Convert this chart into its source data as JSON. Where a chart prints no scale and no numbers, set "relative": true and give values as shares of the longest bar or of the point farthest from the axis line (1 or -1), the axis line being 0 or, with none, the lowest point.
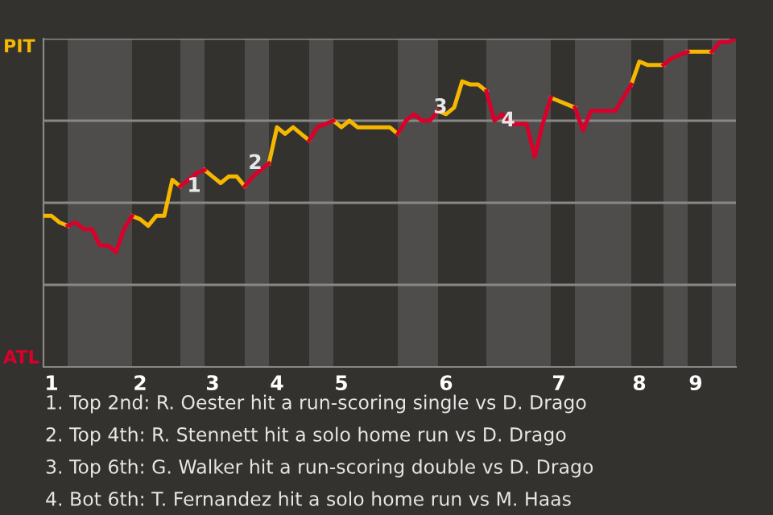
{
  "chart_data": {
    "type": "line",
    "relative": true,
    "categories": [
      null,
      "1",
      null,
      null,
      null,
      null,
      null,
      null,
      null,
      null,
      null,
      null,
      "2",
      null,
      null,
      null,
      null,
      null,
      null,
      null,
      null,
      "3",
      null,
      null,
      null,
      null,
      null,
      null,
      null,
      "4",
      null,
      null,
      null,
      null,
      null,
      null,
      null,
      "5",
      null,
      null,
      null,
      null,
      null,
      null,
      null,
      null,
      null,
      null,
      null,
      null,
      "6",
      null,
      null,
      null,
      null,
      null,
      null,
      null,
      null,
      null,
      null,
      null,
      null,
      null,
      "7",
      null,
      null,
      null,
      null,
      null,
      null,
      null,
      null,
      null,
      "8",
      null,
      null,
      null,
      null,
      null,
      null,
      "9",
      null,
      null,
      null,
      null,
      null
    ],
    "series": [
      {
        "name": "PIT",
        "color": "#f5b700",
        "values": [
          0.46,
          0.46,
          0.44,
          0.43,
          null,
          null,
          null,
          null,
          null,
          null,
          null,
          0.46,
          0.45,
          0.43,
          0.46,
          0.46,
          0.57,
          0.55,
          null,
          null,
          0.6,
          0.58,
          0.56,
          0.58,
          0.58,
          0.55,
          null,
          null,
          0.62,
          0.73,
          0.71,
          0.73,
          0.71,
          0.69,
          null,
          null,
          0.75,
          0.73,
          0.75,
          0.73,
          0.73,
          0.73,
          0.73,
          0.73,
          0.71,
          null,
          null,
          null,
          null,
          0.78,
          0.77,
          0.79,
          0.87,
          0.86,
          0.86,
          0.84,
          null,
          null,
          null,
          null,
          null,
          null,
          null,
          0.82,
          0.81,
          0.8,
          0.79,
          null,
          null,
          null,
          null,
          null,
          null,
          0.86,
          0.93,
          0.92,
          0.92,
          0.92,
          null,
          null,
          0.96,
          0.96,
          0.96,
          0.96,
          null,
          null,
          null
        ]
      },
      {
        "name": "ATL",
        "color": "#d9002b",
        "values": [
          null,
          null,
          null,
          0.43,
          0.44,
          0.42,
          0.42,
          0.37,
          0.37,
          0.35,
          0.42,
          0.46,
          null,
          null,
          null,
          null,
          null,
          0.55,
          0.57,
          0.59,
          0.6,
          null,
          null,
          null,
          null,
          0.55,
          0.58,
          0.6,
          0.62,
          null,
          null,
          null,
          null,
          0.69,
          0.73,
          0.74,
          0.75,
          null,
          null,
          null,
          null,
          null,
          null,
          null,
          0.71,
          0.75,
          0.77,
          0.75,
          0.75,
          0.78,
          null,
          null,
          null,
          null,
          null,
          0.84,
          0.75,
          0.77,
          0.74,
          0.74,
          0.74,
          0.64,
          0.74,
          0.82,
          null,
          null,
          0.79,
          0.72,
          0.78,
          0.78,
          0.78,
          0.78,
          0.82,
          0.86,
          null,
          null,
          null,
          0.92,
          0.94,
          0.95,
          0.96,
          null,
          null,
          0.96,
          0.99,
          0.99,
          1
        ]
      }
    ],
    "marker": "none",
    "line_style": "solid",
    "legend": false,
    "ref_lines": [
      {
        "axis": "y",
        "value": 0.25,
        "color": "#8a8886"
      },
      {
        "axis": "y",
        "value": 0.5,
        "color": "#8a8886"
      },
      {
        "axis": "y",
        "value": 0.75,
        "color": "#8a8886"
      },
      {
        "axis": "y",
        "value": 1,
        "color": "#8a8886"
      }
    ],
    "annotations": [
      {
        "text": "1",
        "y": 0.55
      },
      {
        "text": "2",
        "y": 0.62
      },
      {
        "text": "3",
        "y": 0.79
      },
      {
        "text": "4",
        "y": 0.75
      },
      "1. Top 2nd: R. Oester hit a run-scoring single vs D. Drago",
      "2. Top 4th: R. Stennett hit a solo home run vs D. Drago",
      "3. Top 6th: G. Walker hit a run-scoring double vs D. Drago",
      "4. Bot 6th: T. Fernandez hit a solo home run vs M. Haas"
    ]
  }
}
